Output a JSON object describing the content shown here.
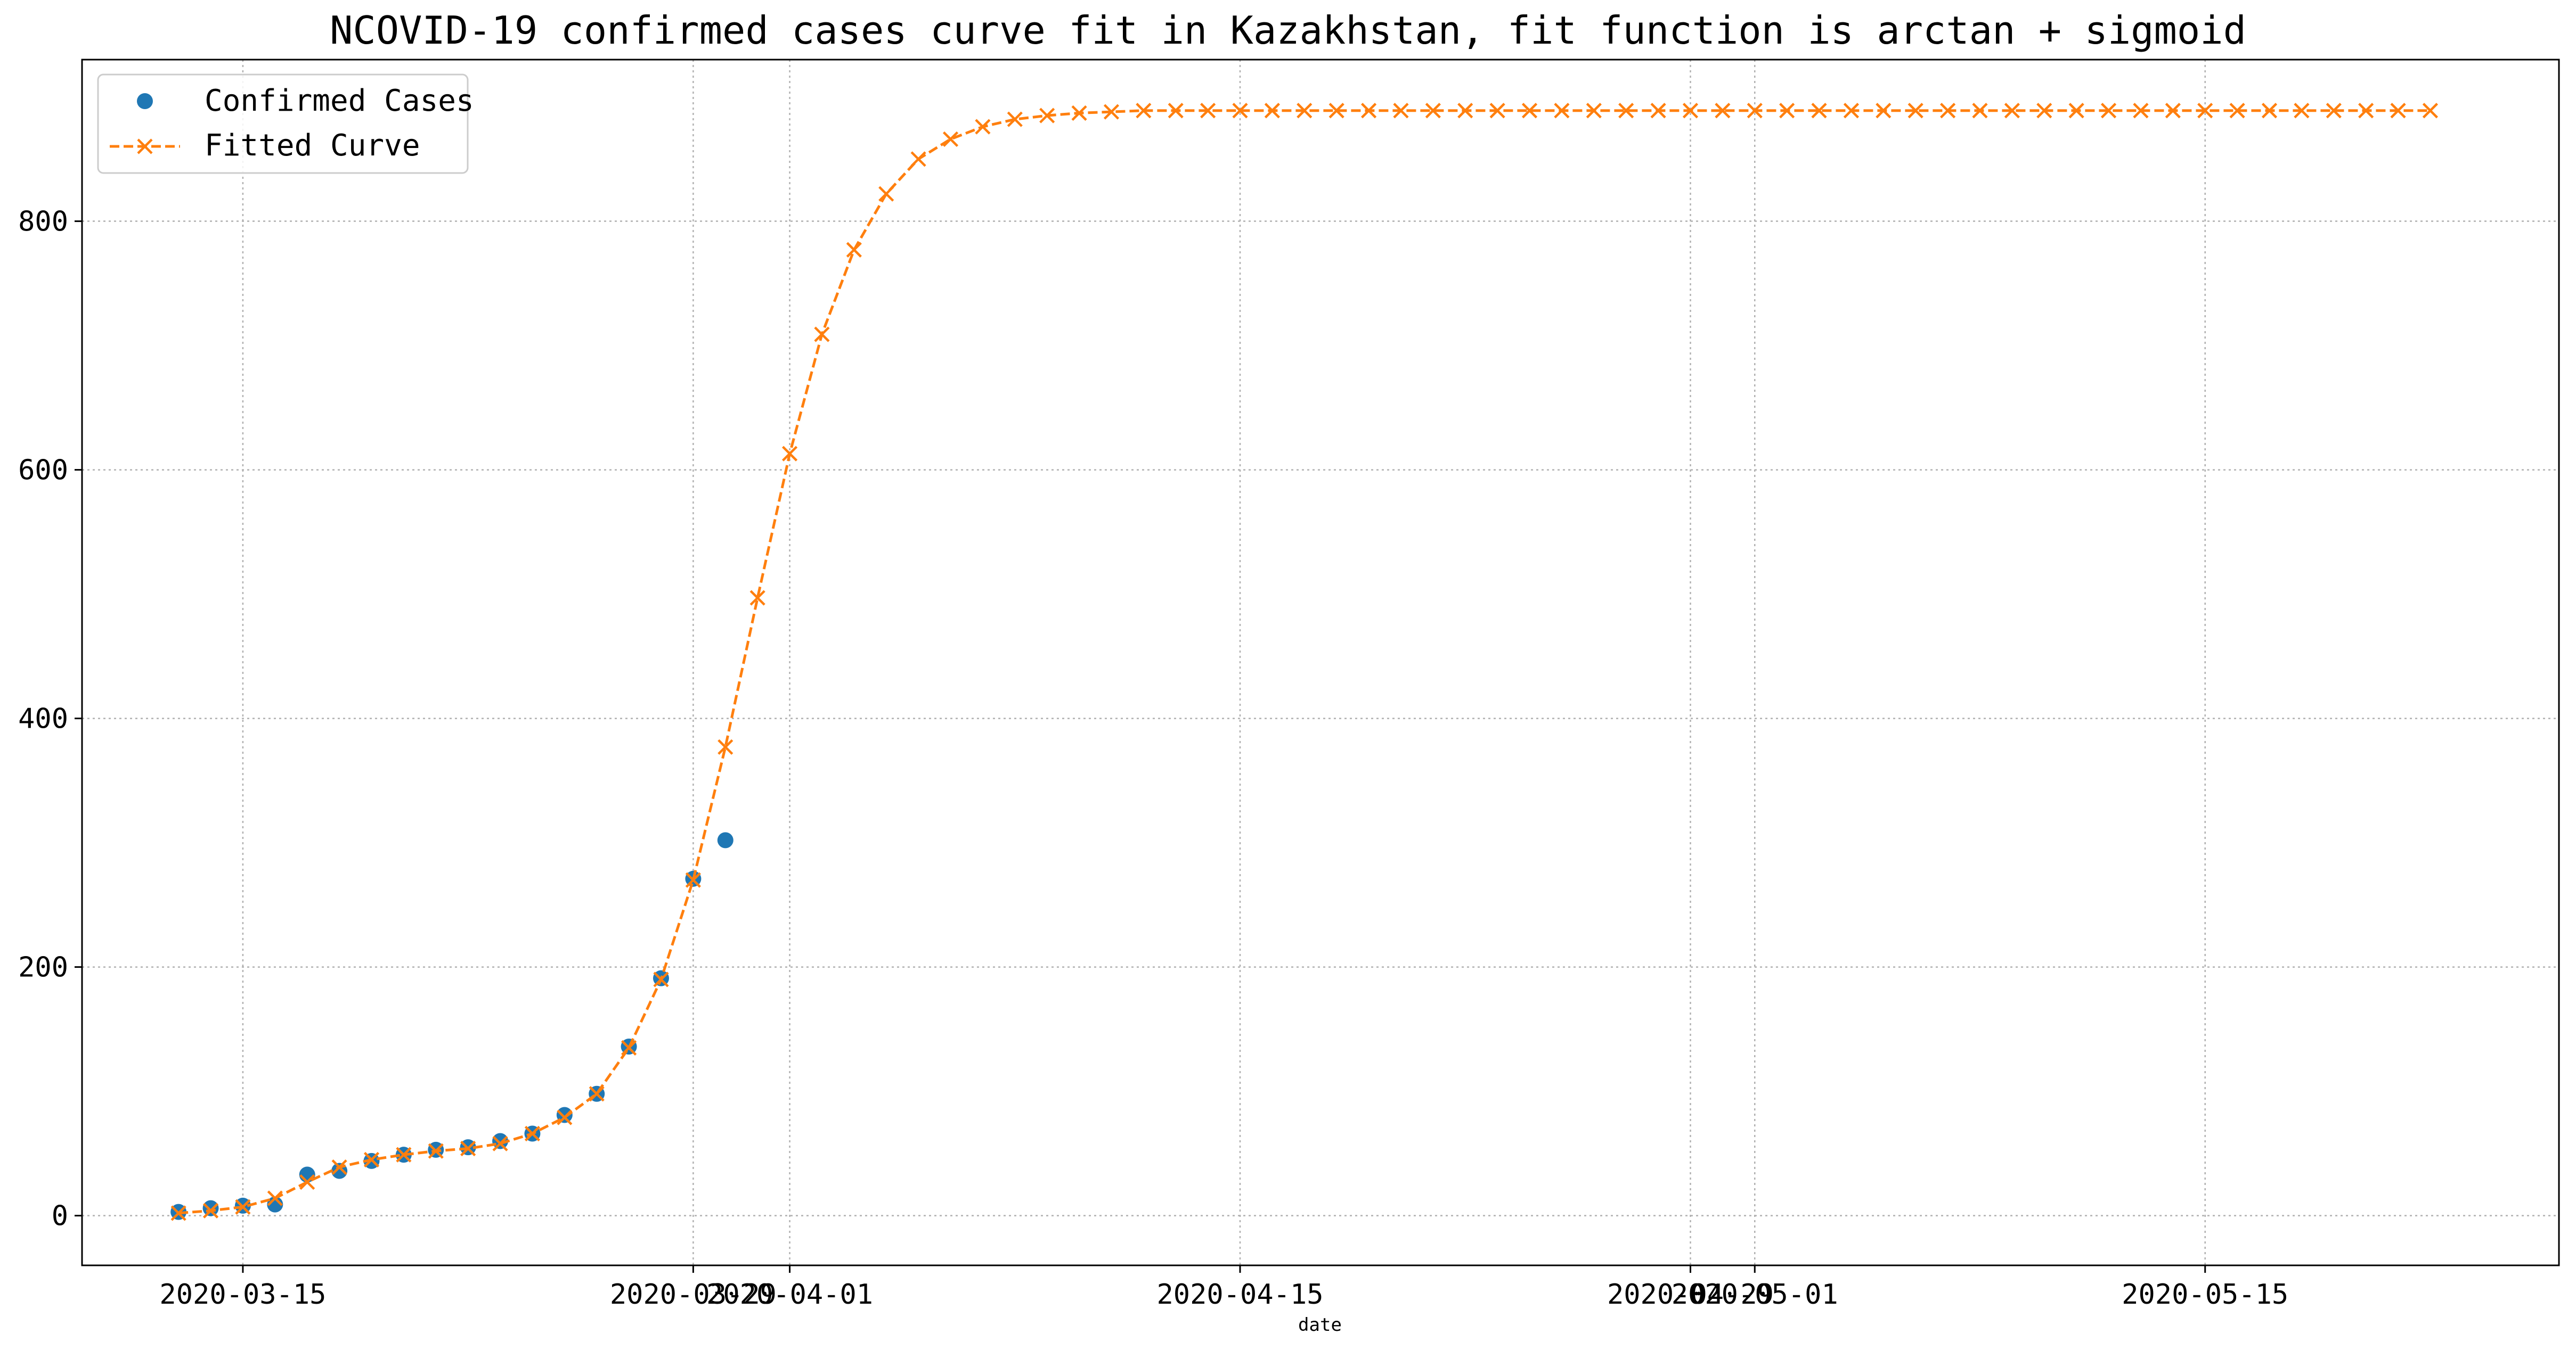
{
  "chart_data": {
    "type": "line",
    "title": "NCOVID-19 confirmed cases curve fit in Kazakhstan, fit function is arctan + sigmoid",
    "xlabel": "date",
    "ylabel": "",
    "x_axis_type": "date",
    "xlim": [
      "2020-03-10",
      "2020-05-26"
    ],
    "ylim": [
      -40,
      930
    ],
    "grid": true,
    "legend_position": "top-left",
    "x_ticks": [
      "2020-03-15",
      "2020-03-29",
      "2020-04-01",
      "2020-04-15",
      "2020-04-29",
      "2020-05-01",
      "2020-05-15"
    ],
    "y_ticks": [
      0,
      200,
      400,
      600,
      800
    ],
    "series": [
      {
        "name": "Confirmed Cases",
        "style": "markers",
        "color": "#1f77b4",
        "x": [
          "2020-03-13",
          "2020-03-14",
          "2020-03-15",
          "2020-03-16",
          "2020-03-17",
          "2020-03-18",
          "2020-03-19",
          "2020-03-20",
          "2020-03-21",
          "2020-03-22",
          "2020-03-23",
          "2020-03-24",
          "2020-03-25",
          "2020-03-26",
          "2020-03-27",
          "2020-03-28",
          "2020-03-29",
          "2020-03-30"
        ],
        "y": [
          3,
          6,
          8,
          9,
          33,
          36,
          44,
          49,
          53,
          55,
          60,
          66,
          81,
          98,
          136,
          191,
          271,
          302
        ]
      },
      {
        "name": "Fitted Curve",
        "style": "dashed-line-x",
        "color": "#ff7f0e",
        "x": [
          "2020-03-13",
          "2020-03-14",
          "2020-03-15",
          "2020-03-16",
          "2020-03-17",
          "2020-03-18",
          "2020-03-19",
          "2020-03-20",
          "2020-03-21",
          "2020-03-22",
          "2020-03-23",
          "2020-03-24",
          "2020-03-25",
          "2020-03-26",
          "2020-03-27",
          "2020-03-28",
          "2020-03-29",
          "2020-03-30",
          "2020-03-31",
          "2020-04-01",
          "2020-04-02",
          "2020-04-03",
          "2020-04-04",
          "2020-04-05",
          "2020-04-06",
          "2020-04-07",
          "2020-04-08",
          "2020-04-09",
          "2020-04-10",
          "2020-04-11",
          "2020-04-12",
          "2020-04-13",
          "2020-04-14",
          "2020-04-15",
          "2020-04-16",
          "2020-04-17",
          "2020-04-18",
          "2020-04-19",
          "2020-04-20",
          "2020-04-21",
          "2020-04-22",
          "2020-04-23",
          "2020-04-24",
          "2020-04-25",
          "2020-04-26",
          "2020-04-27",
          "2020-04-28",
          "2020-04-29",
          "2020-04-30",
          "2020-05-01",
          "2020-05-02",
          "2020-05-03",
          "2020-05-04",
          "2020-05-05",
          "2020-05-06",
          "2020-05-07",
          "2020-05-08",
          "2020-05-09",
          "2020-05-10",
          "2020-05-11",
          "2020-05-12",
          "2020-05-13",
          "2020-05-14",
          "2020-05-15",
          "2020-05-16",
          "2020-05-17",
          "2020-05-18",
          "2020-05-19",
          "2020-05-20",
          "2020-05-21",
          "2020-05-22"
        ],
        "y": [
          2,
          4,
          7,
          14,
          27,
          39,
          45,
          49,
          52,
          54,
          58,
          66,
          79,
          98,
          135,
          190,
          270,
          377,
          497,
          613,
          709,
          777,
          822,
          850,
          866,
          876,
          882,
          885,
          887,
          888,
          889,
          889,
          889,
          889,
          889,
          889,
          889,
          889,
          889,
          889,
          889,
          889,
          889,
          889,
          889,
          889,
          889,
          889,
          889,
          889,
          889,
          889,
          889,
          889,
          889,
          889,
          889,
          889,
          889,
          889,
          889,
          889,
          889,
          889,
          889,
          889,
          889,
          889,
          889,
          889,
          889
        ]
      }
    ]
  }
}
